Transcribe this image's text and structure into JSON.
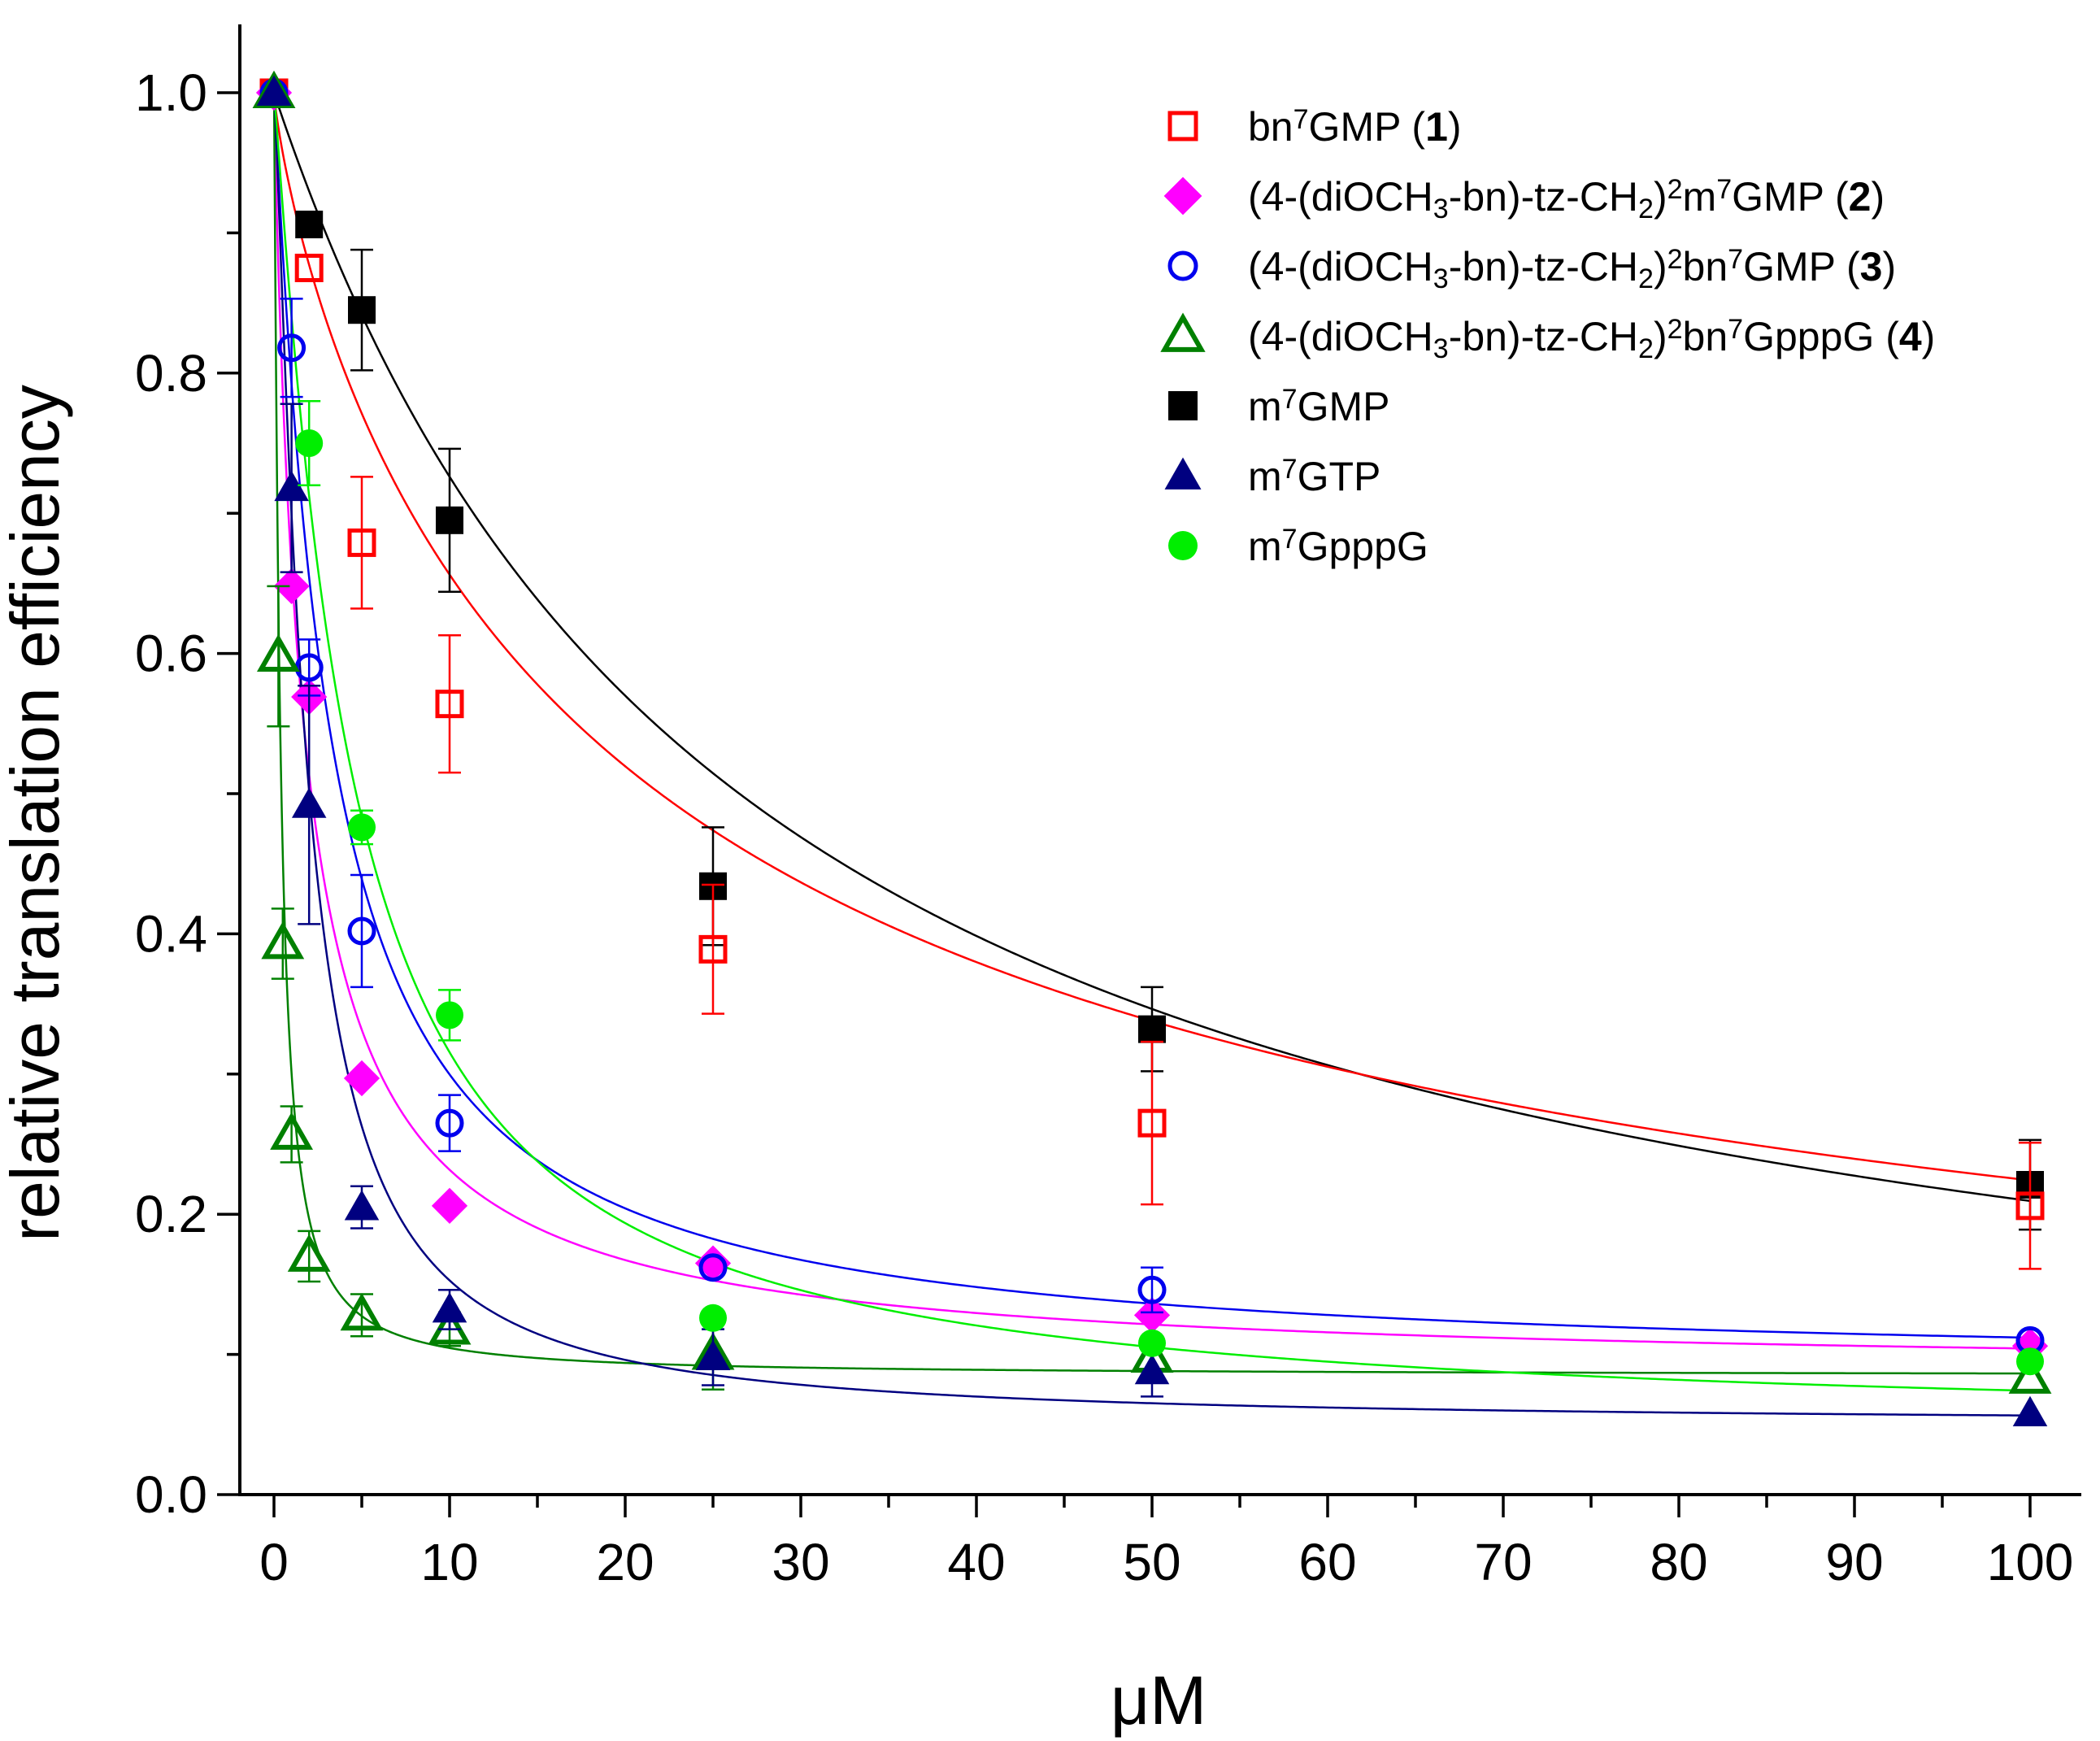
{
  "chart_data": {
    "type": "scatter",
    "title": "",
    "xlabel": "μM",
    "ylabel": "relative translation efficiency",
    "xlim": [
      -2,
      103
    ],
    "ylim": [
      0.0,
      1.05
    ],
    "xticks": [
      0,
      10,
      20,
      30,
      40,
      50,
      60,
      70,
      80,
      90,
      100
    ],
    "xtick_labels": [
      "0",
      "10",
      "20",
      "30",
      "40",
      "50",
      "60",
      "70",
      "80",
      "90",
      "100"
    ],
    "yticks": [
      0.0,
      0.2,
      0.4,
      0.6,
      0.8,
      1.0
    ],
    "ytick_labels": [
      "0.0",
      "0.2",
      "0.4",
      "0.6",
      "0.8",
      "1.0"
    ],
    "legend_position": "top-right",
    "series": [
      {
        "name": "m7GMP",
        "legend": {
          "pre": "m",
          "sup1": "7",
          "mid": "GMP",
          "sub": "",
          "post": "",
          "sup2": "",
          "tail": "",
          "bold": "",
          "end": ""
        },
        "marker": "square-filled",
        "color": "#000000",
        "x": [
          0,
          2,
          5,
          10,
          25,
          50,
          100
        ],
        "y": [
          1.0,
          0.906,
          0.845,
          0.695,
          0.434,
          0.332,
          0.221
        ],
        "err": [
          0.0,
          0.0,
          0.043,
          0.051,
          0.042,
          0.03,
          0.032
        ],
        "fit": {
          "y0": 0.0,
          "a": 1.0,
          "b": 0.0,
          "n": 1.0
        }
      },
      {
        "name": "bn7GMP (1)",
        "legend": {
          "pre": "bn",
          "sup1": "7",
          "mid": "GMP (",
          "sub": "",
          "post": "",
          "sup2": "",
          "tail": "",
          "bold": "1",
          "end": ")"
        },
        "marker": "square-open",
        "color": "#ff0000",
        "x": [
          0,
          2,
          5,
          10,
          25,
          50,
          100
        ],
        "y": [
          1.0,
          0.875,
          0.679,
          0.564,
          0.389,
          0.265,
          0.206
        ],
        "err": [
          0.0,
          0.0,
          0.047,
          0.049,
          0.046,
          0.058,
          0.045
        ],
        "fit": {
          "y0": 0.0,
          "a": 1.0,
          "b": 0.0,
          "n": 1.0
        }
      },
      {
        "name": "(4-(diOCH3-bn)-tz-CH2)2m7GMP (2)",
        "legend": {
          "pre": "(4-(diOCH",
          "sup1": "",
          "mid": "",
          "sub": "3",
          "post": "-bn)-tz-CH",
          "sub2": "2",
          "post2": ")",
          "sup2": "2",
          "tail": "m",
          "sup3": "7",
          "tail2": "GMP (",
          "bold": "2",
          "end": ")"
        },
        "marker": "diamond-filled",
        "color": "#ff00ff",
        "x": [
          0,
          1,
          2,
          5,
          10,
          25,
          50,
          100
        ],
        "y": [
          1.0,
          0.648,
          0.569,
          0.297,
          0.206,
          0.165,
          0.128,
          0.106
        ],
        "err": [
          0.0,
          0.0,
          0.0,
          0.0,
          0.0,
          0.0,
          0.0,
          0.0
        ],
        "fit": {
          "y0": 0.0,
          "a": 1.0,
          "b": 0.0,
          "n": 1.0
        }
      },
      {
        "name": "(4-(diOCH3-bn)-tz-CH2)2bn7GMP (3)",
        "legend": {
          "pre": "(4-(diOCH",
          "sup1": "",
          "mid": "",
          "sub": "3",
          "post": "-bn)-tz-CH",
          "sub2": "2",
          "post2": ")",
          "sup2": "2",
          "tail": "bn",
          "sup3": "7",
          "tail2": "GMP (",
          "bold": "3",
          "end": ")"
        },
        "marker": "circle-open",
        "color": "#0000ee",
        "x": [
          0,
          1,
          2,
          5,
          10,
          25,
          50,
          100
        ],
        "y": [
          1.0,
          0.818,
          0.59,
          0.402,
          0.265,
          0.162,
          0.146,
          0.11
        ],
        "err": [
          0.0,
          0.035,
          0.02,
          0.04,
          0.02,
          0.0,
          0.016,
          0.0
        ],
        "fit": {
          "y0": 0.0,
          "a": 1.0,
          "b": 0.0,
          "n": 1.0
        }
      },
      {
        "name": "(4-(diOCH3-bn)-tz-CH2)2bn7GpppG (4)",
        "legend": {
          "pre": "(4-(diOCH",
          "sup1": "",
          "mid": "",
          "sub": "3",
          "post": "-bn)-tz-CH",
          "sub2": "2",
          "post2": ")",
          "sup2": "2",
          "tail": "bn",
          "sup3": "7",
          "tail2": "GpppG (",
          "bold": "4",
          "end": ")"
        },
        "marker": "triangle-open",
        "color": "#008000",
        "x": [
          0,
          0.25,
          0.5,
          1,
          2,
          5,
          10,
          25,
          50,
          100
        ],
        "y": [
          1.0,
          0.598,
          0.393,
          0.257,
          0.17,
          0.128,
          0.118,
          0.1,
          0.098,
          0.083
        ],
        "err": [
          0.0,
          0.05,
          0.025,
          0.02,
          0.018,
          0.015,
          0.012,
          0.025,
          0.015,
          0.0
        ],
        "fit": {
          "y0": 0.0,
          "a": 1.0,
          "b": 0.0,
          "n": 1.0
        }
      },
      {
        "name": "m7GTP",
        "legend": {
          "pre": "m",
          "sup1": "7",
          "mid": "GTP",
          "sub": "",
          "post": "",
          "sup2": "",
          "tail": "",
          "bold": "",
          "end": ""
        },
        "marker": "triangle-filled",
        "color": "#000080",
        "x": [
          0,
          1,
          2,
          5,
          10,
          25,
          50,
          100
        ],
        "y": [
          1.0,
          0.718,
          0.492,
          0.205,
          0.132,
          0.098,
          0.088,
          0.058
        ],
        "err": [
          0.0,
          0.06,
          0.085,
          0.015,
          0.014,
          0.02,
          0.018,
          0.0
        ],
        "fit": {
          "y0": 0.0,
          "a": 1.0,
          "b": 0.0,
          "n": 1.0
        }
      },
      {
        "name": "m7GpppG",
        "legend": {
          "pre": "m",
          "sup1": "7",
          "mid": "GpppG",
          "sub": "",
          "post": "",
          "sup2": "",
          "tail": "",
          "bold": "",
          "end": ""
        },
        "marker": "circle-filled",
        "color": "#00ee00",
        "x": [
          2,
          5,
          10,
          25,
          50,
          100
        ],
        "y": [
          0.75,
          0.476,
          0.342,
          0.126,
          0.108,
          0.095
        ],
        "err": [
          0.03,
          0.012,
          0.018,
          0.0,
          0.0,
          0.0
        ],
        "fit": {
          "y0": 0.0,
          "a": 1.0,
          "b": 0.0,
          "n": 1.0
        }
      }
    ],
    "fit_curves": [
      {
        "series": "m7GMP",
        "color": "#000000",
        "top": 1.0,
        "bottom": 0.0,
        "ic50": 26.5
      },
      {
        "series": "bn7GMP (1)",
        "color": "#ff0000",
        "top": 1.0,
        "bottom": 0.0,
        "ic50": 22.0,
        "hill": 0.82
      },
      {
        "series": "(4-(diOCH3-bn)-tz-CH2)2m7GMP (2)",
        "color": "#ff00ff",
        "top": 1.0,
        "bottom": 0.085,
        "ic50": 1.75,
        "hill": 0.95
      },
      {
        "series": "(4-(diOCH3-bn)-tz-CH2)2bn7GMP (3)",
        "color": "#0000ee",
        "top": 1.0,
        "bottom": 0.088,
        "ic50": 3.2,
        "hill": 1.05
      },
      {
        "series": "(4-(diOCH3-bn)-tz-CH2)2bn7GpppG (4)",
        "color": "#008000",
        "top": 1.0,
        "bottom": 0.085,
        "ic50": 0.36,
        "hill": 1.15
      },
      {
        "series": "m7GTP",
        "color": "#000080",
        "top": 1.0,
        "bottom": 0.05,
        "ic50": 1.85,
        "hill": 1.25
      },
      {
        "series": "m7GpppG",
        "color": "#00ee00",
        "top": 1.0,
        "bottom": 0.045,
        "ic50": 4.3,
        "hill": 1.1
      }
    ],
    "legend_order": [
      1,
      2,
      3,
      4,
      0,
      5,
      6
    ]
  }
}
